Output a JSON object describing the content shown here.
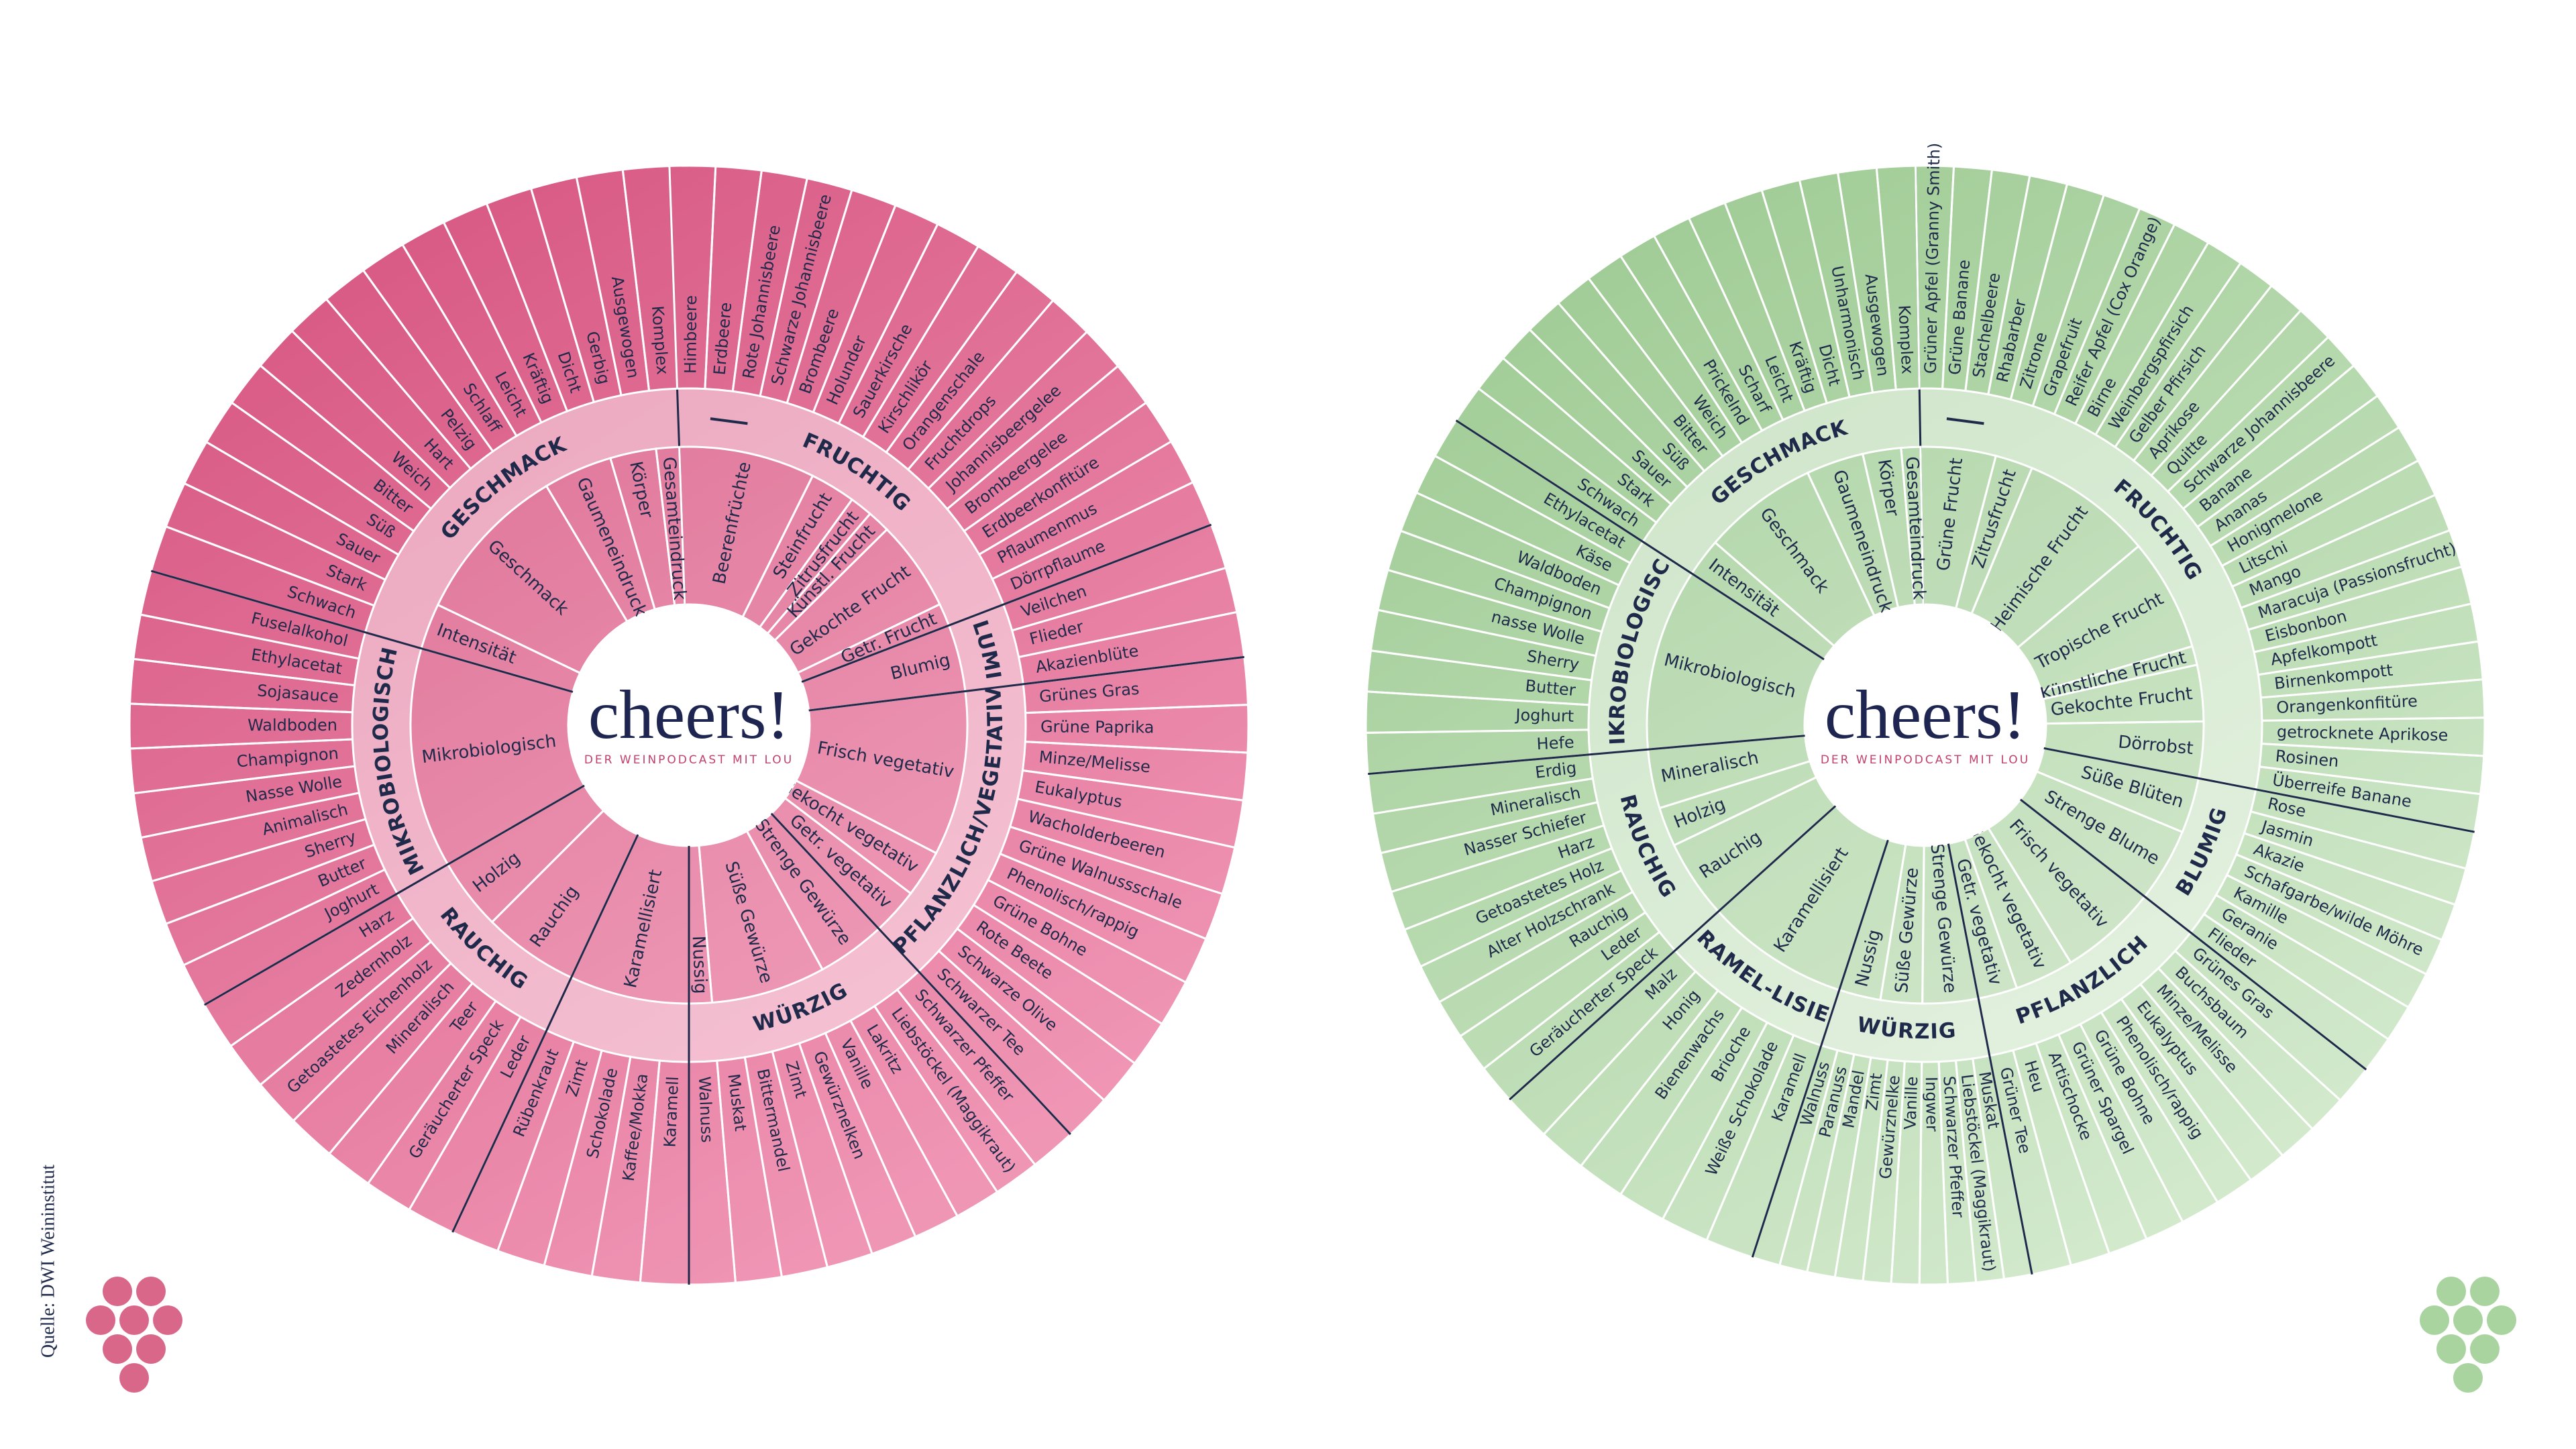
{
  "source": "Quelle: DWI Weininstitut",
  "wheels": [
    {
      "logo": "cheers!",
      "tagline": "DER WEINPODCAST MIT LOU",
      "categories": [
        {
          "label": "FRUCHTIG",
          "subcategories": [
            {
              "label": "Beerenfrüchte",
              "terms": [
                "Himbeere",
                "Erdbeere",
                "Rote Johannisbeere",
                "Schwarze Johannisbeere",
                "Brombeere",
                "Holunder"
              ]
            },
            {
              "label": "Steinfrucht",
              "terms": [
                "Sauerkirsche",
                "Kirschlikör"
              ]
            },
            {
              "label": "Zitrusfrucht",
              "terms": [
                "Orangenschale"
              ]
            },
            {
              "label": "Künstl. Frucht",
              "terms": [
                "Fruchtdrops"
              ]
            },
            {
              "label": "Gekochte Frucht",
              "terms": [
                "Johannisbeergelee",
                "Brombeergelee",
                "Erdbeerkonfitüre",
                "Pflaumenmus"
              ]
            },
            {
              "label": "Getr. Frucht",
              "terms": [
                "Dörrpflaume"
              ]
            }
          ]
        },
        {
          "label": "BLUMIG",
          "subcategories": [
            {
              "label": "Blumig",
              "terms": [
                "Veilchen",
                "Flieder",
                "Akazienblüte"
              ]
            }
          ]
        },
        {
          "label": "PFLANZLICH/VEGETATIV",
          "subcategories": [
            {
              "label": "Frisch vegetativ",
              "terms": [
                "Grünes Gras",
                "Grüne Paprika",
                "Minze/Melisse",
                "Eukalyptus",
                "Wacholderbeeren",
                "Grüne Walnussschale",
                "Phenolisch/rappig"
              ]
            },
            {
              "label": "Gekocht vegetativ",
              "terms": [
                "Grüne Bohne",
                "Rote Beete"
              ]
            },
            {
              "label": "Getr. vegetativ",
              "terms": [
                "Schwarze Olive",
                "Schwarzer Tee"
              ]
            }
          ]
        },
        {
          "label": "WÜRZIG",
          "subcategories": [
            {
              "label": "Strenge Gewürze",
              "terms": [
                "Schwarzer Pfeffer",
                "Liebstöckel (Maggikraut)",
                "Lakritz"
              ]
            },
            {
              "label": "Süße Gewürze",
              "terms": [
                "Vanille",
                "Gewürznelken",
                "Zimt",
                "Bittermandel",
                "Muskat"
              ]
            },
            {
              "label": "Nussig",
              "terms": [
                "Walnuss"
              ]
            }
          ]
        },
        {
          "subcategories": [
            {
              "label": "Karamellisiert",
              "terms": [
                "Karamell",
                "Kaffee/Mokka",
                "Schokolade",
                "Zimt",
                "Rübenkraut"
              ]
            }
          ]
        },
        {
          "label": "RAUCHIG",
          "subcategories": [
            {
              "label": "Rauchig",
              "terms": [
                "Leder",
                "Geräucherter Speck",
                "Teer",
                "Mineralisch"
              ]
            },
            {
              "label": "Holzig",
              "terms": [
                "Getoastetes Eichenholz",
                "Zedernholz",
                "Harz"
              ]
            }
          ]
        },
        {
          "label": "MIKROBIOLOGISCH",
          "subcategories": [
            {
              "label": "Mikrobiologisch",
              "terms": [
                "Joghurt",
                "Butter",
                "Sherry",
                "Animalisch",
                "Nasse Wolle",
                "Champignon",
                "Waldboden",
                "Sojasauce",
                "Ethylacetat",
                "Fuselalkohol"
              ]
            }
          ]
        },
        {
          "label": "GESCHMACK",
          "subcategories": [
            {
              "label": "Intensität",
              "terms": [
                "Schwach",
                "Stark"
              ]
            },
            {
              "label": "Geschmack",
              "terms": [
                "Sauer",
                "Süß",
                "Bitter",
                "Weich",
                "Hart",
                "Pelzig",
                "Schlaff"
              ]
            },
            {
              "label": "Gaumeneindruck",
              "terms": [
                "Leicht",
                "Kräftig",
                "Dicht"
              ]
            },
            {
              "label": "Körper",
              "terms": [
                "Gerbig",
                "Ausgewogen"
              ]
            },
            {
              "label": "Gesamteindruck",
              "terms": [
                "Komplex"
              ]
            }
          ]
        }
      ]
    },
    {
      "logo": "cheers!",
      "tagline": "DER WEINPODCAST MIT LOU",
      "categories": [
        {
          "label": "FRUCHTIG",
          "subcategories": [
            {
              "label": "Grüne Frucht",
              "terms": [
                "Grüner Apfel (Granny Smith)",
                "Grüne Banane",
                "Stachelbeere",
                "Rhabarber"
              ]
            },
            {
              "label": "Zitrusfrucht",
              "terms": [
                "Zitrone",
                "Grapefruit"
              ]
            },
            {
              "label": "Heimische Frucht",
              "terms": [
                "Reifer Apfel (Cox Orange)",
                "Birne",
                "Weinbergspfirsich",
                "Gelber Pfirsich",
                "Aprikose",
                "Quitte",
                "Schwarze Johannisbeere"
              ]
            },
            {
              "label": "Tropische Frucht",
              "terms": [
                "Banane",
                "Ananas",
                "Honigmelone",
                "Litschi",
                "Mango",
                "Maracuja (Passionsfrucht)"
              ]
            },
            {
              "label": "Künstliche Frucht",
              "terms": [
                "Eisbonbon"
              ]
            },
            {
              "label": "Gekochte Frucht",
              "terms": [
                "Apfelkompott",
                "Birnenkompott",
                "Orangenkonfitüre"
              ]
            },
            {
              "label": "Dörrobst",
              "terms": [
                "getrocknete Aprikose",
                "Rosinen",
                "Überreife Banane"
              ]
            }
          ]
        },
        {
          "label": "BLUMIG",
          "subcategories": [
            {
              "label": "Süße Blüten",
              "terms": [
                "Rose",
                "Jasmin",
                "Akazie"
              ]
            },
            {
              "label": "Strenge Blume",
              "terms": [
                "Schafgarbe/wilde Möhre",
                "Kamille",
                "Geranie",
                "Flieder"
              ]
            }
          ]
        },
        {
          "label": "PFLANZLICH",
          "subcategories": [
            {
              "label": "Frisch vegetativ",
              "terms": [
                "Grünes Gras",
                "Buchsbaum",
                "Minze/Melisse",
                "Eukalyptus",
                "Phenolisch/rappig"
              ]
            },
            {
              "label": "Gekocht vegetativ",
              "terms": [
                "Grüne Bohne",
                "Grüner Spargel",
                "Artischocke"
              ]
            },
            {
              "label": "Getr. vegetativ",
              "terms": [
                "Heu",
                "Grüner Tee"
              ]
            }
          ]
        },
        {
          "label": "WÜRZIG",
          "subcategories": [
            {
              "label": "Strenge Gewürze",
              "terms": [
                "Muskat",
                "Liebstöckel (Maggikraut)",
                "Schwarzer Pfeffer",
                "Ingwer"
              ]
            },
            {
              "label": "Süße Gewürze",
              "terms": [
                "Vanille",
                "Gewürznelke",
                "Zimt"
              ]
            },
            {
              "label": "Nussig",
              "terms": [
                "Mandel",
                "Paranuss",
                "Walnuss"
              ]
            }
          ]
        },
        {
          "label": "KARAMEL-LISIERT",
          "subcategories": [
            {
              "label": "Karamellisiert",
              "terms": [
                "Karamell",
                "Weiße Schokolade",
                "Brioche",
                "Bienenwachs",
                "Honig",
                "Malz"
              ]
            }
          ]
        },
        {
          "label": "RAUCHIG",
          "subcategories": [
            {
              "label": "Rauchig",
              "terms": [
                "Geräucherter Speck",
                "Leder",
                "Rauchig",
                "Alter Holzschrank"
              ]
            },
            {
              "label": "Holzig",
              "terms": [
                "Getoastetes Holz",
                "Harz"
              ]
            },
            {
              "label": "Mineralisch",
              "terms": [
                "Nasser Schiefer",
                "Mineralisch",
                "Erdig"
              ]
            }
          ]
        },
        {
          "label": "MIKROBIOLOGISCH",
          "subcategories": [
            {
              "label": "Mikrobiologisch",
              "terms": [
                "Hefe",
                "Joghurt",
                "Butter",
                "Sherry",
                "nasse Wolle",
                "Champignon",
                "Waldboden",
                "Käse",
                "Ethylacetat"
              ]
            }
          ]
        },
        {
          "label": "GESCHMACK",
          "subcategories": [
            {
              "label": "Intensität",
              "terms": [
                "Schwach",
                "Stark"
              ]
            },
            {
              "label": "Geschmack",
              "terms": [
                "Sauer",
                "Süß",
                "Bitter",
                "Weich",
                "Prickelnd",
                "Scharf"
              ]
            },
            {
              "label": "Gaumeneindruck",
              "terms": [
                "Leicht",
                "Kräftig",
                "Dicht"
              ]
            },
            {
              "label": "Körper",
              "terms": [
                "Unharmonisch",
                "Ausgewogen"
              ]
            },
            {
              "label": "Gesamteindruck",
              "terms": [
                "Komplex"
              ]
            }
          ]
        }
      ]
    }
  ]
}
